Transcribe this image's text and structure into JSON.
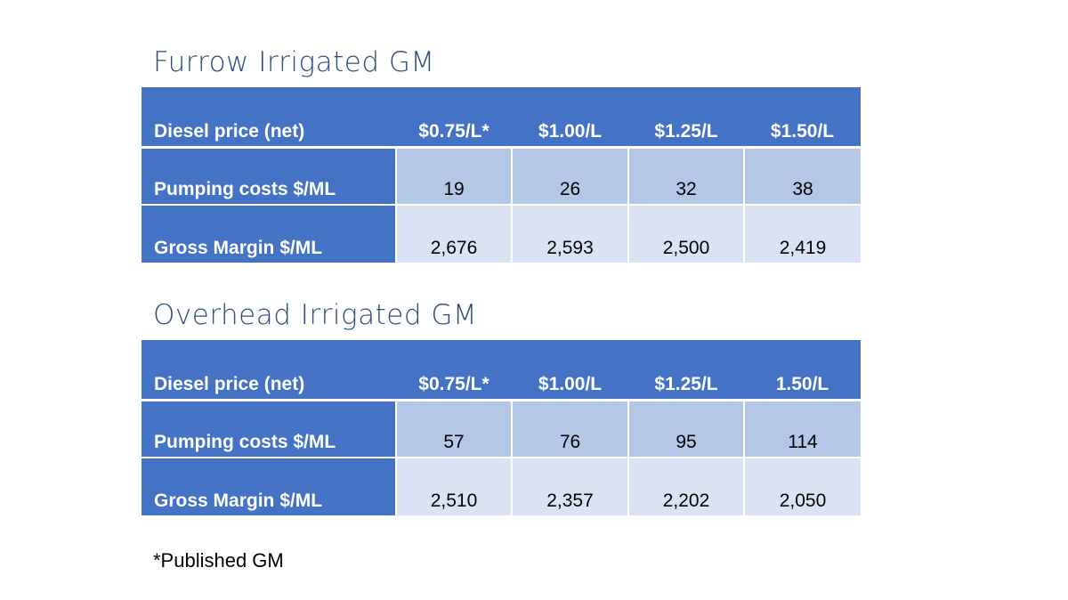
{
  "sections": [
    {
      "title": "Furrow Irrigated GM",
      "header": {
        "label": "Diesel price (net)",
        "prices": [
          "$0.75/L*",
          "$1.00/L",
          "$1.25/L",
          "$1.50/L"
        ]
      },
      "rows": [
        {
          "label": "Pumping costs $/ML",
          "values": [
            "19",
            "26",
            "32",
            "38"
          ]
        },
        {
          "label": "Gross Margin $/ML",
          "values": [
            "2,676",
            "2,593",
            "2,500",
            "2,419"
          ]
        }
      ]
    },
    {
      "title": "Overhead Irrigated GM",
      "header": {
        "label": "Diesel price (net)",
        "prices": [
          "$0.75/L*",
          "$1.00/L",
          "$1.25/L",
          "1.50/L"
        ]
      },
      "rows": [
        {
          "label": "Pumping costs $/ML",
          "values": [
            "57",
            "76",
            "95",
            "114"
          ]
        },
        {
          "label": "Gross Margin $/ML",
          "values": [
            "2,510",
            "2,357",
            "2,202",
            "2,050"
          ]
        }
      ]
    }
  ],
  "footnote": "*Published GM",
  "colors": {
    "title": "#2e4d7b",
    "header_fill": "#4472c4",
    "band_dark": "#b4c7e7",
    "band_light": "#dae3f3"
  }
}
